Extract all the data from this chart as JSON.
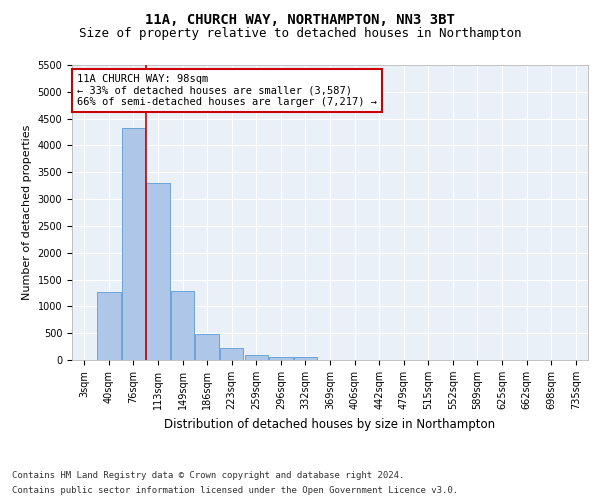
{
  "title1": "11A, CHURCH WAY, NORTHAMPTON, NN3 3BT",
  "title2": "Size of property relative to detached houses in Northampton",
  "xlabel": "Distribution of detached houses by size in Northampton",
  "ylabel": "Number of detached properties",
  "bar_labels": [
    "3sqm",
    "40sqm",
    "76sqm",
    "113sqm",
    "149sqm",
    "186sqm",
    "223sqm",
    "259sqm",
    "296sqm",
    "332sqm",
    "369sqm",
    "406sqm",
    "442sqm",
    "479sqm",
    "515sqm",
    "552sqm",
    "589sqm",
    "625sqm",
    "662sqm",
    "698sqm",
    "735sqm"
  ],
  "bar_values": [
    0,
    1270,
    4330,
    3300,
    1280,
    490,
    220,
    90,
    60,
    60,
    0,
    0,
    0,
    0,
    0,
    0,
    0,
    0,
    0,
    0,
    0
  ],
  "bar_color": "#aec6e8",
  "bar_edge_color": "#5b9bd5",
  "background_color": "#eaf0f8",
  "grid_color": "#ffffff",
  "annotation_line1": "11A CHURCH WAY: 98sqm",
  "annotation_line2": "← 33% of detached houses are smaller (3,587)",
  "annotation_line3": "66% of semi-detached houses are larger (7,217) →",
  "annotation_box_color": "#ffffff",
  "annotation_box_edge_color": "#cc0000",
  "vline_bar_index": 2,
  "vline_color": "#cc0000",
  "ylim_max": 5500,
  "yticks": [
    0,
    500,
    1000,
    1500,
    2000,
    2500,
    3000,
    3500,
    4000,
    4500,
    5000,
    5500
  ],
  "footer_line1": "Contains HM Land Registry data © Crown copyright and database right 2024.",
  "footer_line2": "Contains public sector information licensed under the Open Government Licence v3.0.",
  "title1_fontsize": 10,
  "title2_fontsize": 9,
  "annotation_fontsize": 7.5,
  "xlabel_fontsize": 8.5,
  "ylabel_fontsize": 8,
  "tick_fontsize": 7,
  "footer_fontsize": 6.5
}
